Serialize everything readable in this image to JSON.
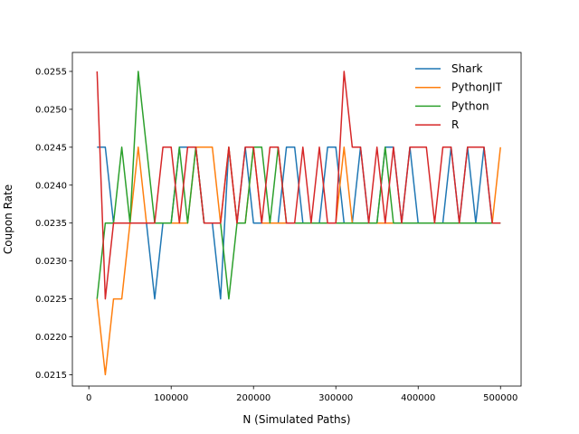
{
  "chart_data": {
    "type": "line",
    "title": "",
    "xlabel": "N (Simulated Paths)",
    "ylabel": "Coupon Rate",
    "xlim": [
      -20000,
      525000
    ],
    "ylim": [
      0.02135,
      0.02575
    ],
    "xticks": [
      0,
      100000,
      200000,
      300000,
      400000,
      500000
    ],
    "xtick_labels": [
      "0",
      "100000",
      "200000",
      "300000",
      "400000",
      "500000"
    ],
    "yticks": [
      0.0215,
      0.022,
      0.0225,
      0.023,
      0.0235,
      0.024,
      0.0245,
      0.025,
      0.0255
    ],
    "ytick_labels": [
      "0.0215",
      "0.0220",
      "0.0225",
      "0.0230",
      "0.0235",
      "0.0240",
      "0.0245",
      "0.0250",
      "0.0255"
    ],
    "grid": false,
    "legend_position": "top-right",
    "x": [
      10000,
      20000,
      30000,
      40000,
      50000,
      60000,
      70000,
      80000,
      90000,
      100000,
      110000,
      120000,
      130000,
      140000,
      150000,
      160000,
      170000,
      180000,
      190000,
      200000,
      210000,
      220000,
      230000,
      240000,
      250000,
      260000,
      270000,
      280000,
      290000,
      300000,
      310000,
      320000,
      330000,
      340000,
      350000,
      360000,
      370000,
      380000,
      390000,
      400000,
      410000,
      420000,
      430000,
      440000,
      450000,
      460000,
      470000,
      480000,
      490000,
      500000
    ],
    "series": [
      {
        "name": "Shark",
        "color": "#1f77b4",
        "values": [
          0.0245,
          0.0245,
          0.0235,
          0.0235,
          0.0235,
          0.0235,
          0.0235,
          0.0225,
          0.0235,
          0.0235,
          0.0245,
          0.0245,
          0.0245,
          0.0235,
          0.0235,
          0.0225,
          0.0245,
          0.0235,
          0.0245,
          0.0235,
          0.0235,
          0.0235,
          0.0235,
          0.0245,
          0.0245,
          0.0235,
          0.0235,
          0.0235,
          0.0245,
          0.0245,
          0.0235,
          0.0235,
          0.0245,
          0.0235,
          0.0235,
          0.0245,
          0.0245,
          0.0235,
          0.0245,
          0.0235,
          0.0235,
          0.0235,
          0.0235,
          0.0245,
          0.0235,
          0.0245,
          0.0235,
          0.0245,
          0.0235,
          0.0235
        ]
      },
      {
        "name": "PythonJIT",
        "color": "#ff7f0e",
        "values": [
          0.0225,
          0.0215,
          0.0225,
          0.0225,
          0.0235,
          0.0245,
          0.0235,
          0.0235,
          0.0235,
          0.0235,
          0.0235,
          0.0235,
          0.0245,
          0.0245,
          0.0245,
          0.0235,
          0.0245,
          0.0235,
          0.0235,
          0.0245,
          0.0235,
          0.0235,
          0.0235,
          0.0235,
          0.0235,
          0.0235,
          0.0235,
          0.0235,
          0.0235,
          0.0235,
          0.0245,
          0.0235,
          0.0235,
          0.0235,
          0.0235,
          0.0235,
          0.0235,
          0.0235,
          0.0235,
          0.0235,
          0.0235,
          0.0235,
          0.0235,
          0.0235,
          0.0235,
          0.0235,
          0.0235,
          0.0235,
          0.0235,
          0.0245
        ]
      },
      {
        "name": "Python",
        "color": "#2ca02c",
        "values": [
          0.0225,
          0.0235,
          0.0235,
          0.0245,
          0.0235,
          0.0255,
          0.0245,
          0.0235,
          0.0235,
          0.0235,
          0.0245,
          0.0235,
          0.0245,
          0.0235,
          0.0235,
          0.0235,
          0.0225,
          0.0235,
          0.0235,
          0.0245,
          0.0245,
          0.0235,
          0.0245,
          0.0235,
          0.0235,
          0.0235,
          0.0235,
          0.0235,
          0.0235,
          0.0235,
          0.0235,
          0.0235,
          0.0235,
          0.0235,
          0.0235,
          0.0245,
          0.0235,
          0.0235,
          0.0235,
          0.0235,
          0.0235,
          0.0235,
          0.0235,
          0.0235,
          0.0235,
          0.0235,
          0.0235,
          0.0235,
          0.0235,
          0.0235
        ]
      },
      {
        "name": "R",
        "color": "#d62728",
        "values": [
          0.0255,
          0.0225,
          0.0235,
          0.0235,
          0.0235,
          0.0235,
          0.0235,
          0.0235,
          0.0245,
          0.0245,
          0.0235,
          0.0245,
          0.0245,
          0.0235,
          0.0235,
          0.0235,
          0.0245,
          0.0235,
          0.0245,
          0.0245,
          0.0235,
          0.0245,
          0.0245,
          0.0235,
          0.0235,
          0.0245,
          0.0235,
          0.0245,
          0.0235,
          0.0235,
          0.0255,
          0.0245,
          0.0245,
          0.0235,
          0.0245,
          0.0235,
          0.0245,
          0.0235,
          0.0245,
          0.0245,
          0.0245,
          0.0235,
          0.0245,
          0.0245,
          0.0235,
          0.0245,
          0.0245,
          0.0245,
          0.0235,
          0.0235
        ]
      }
    ]
  }
}
